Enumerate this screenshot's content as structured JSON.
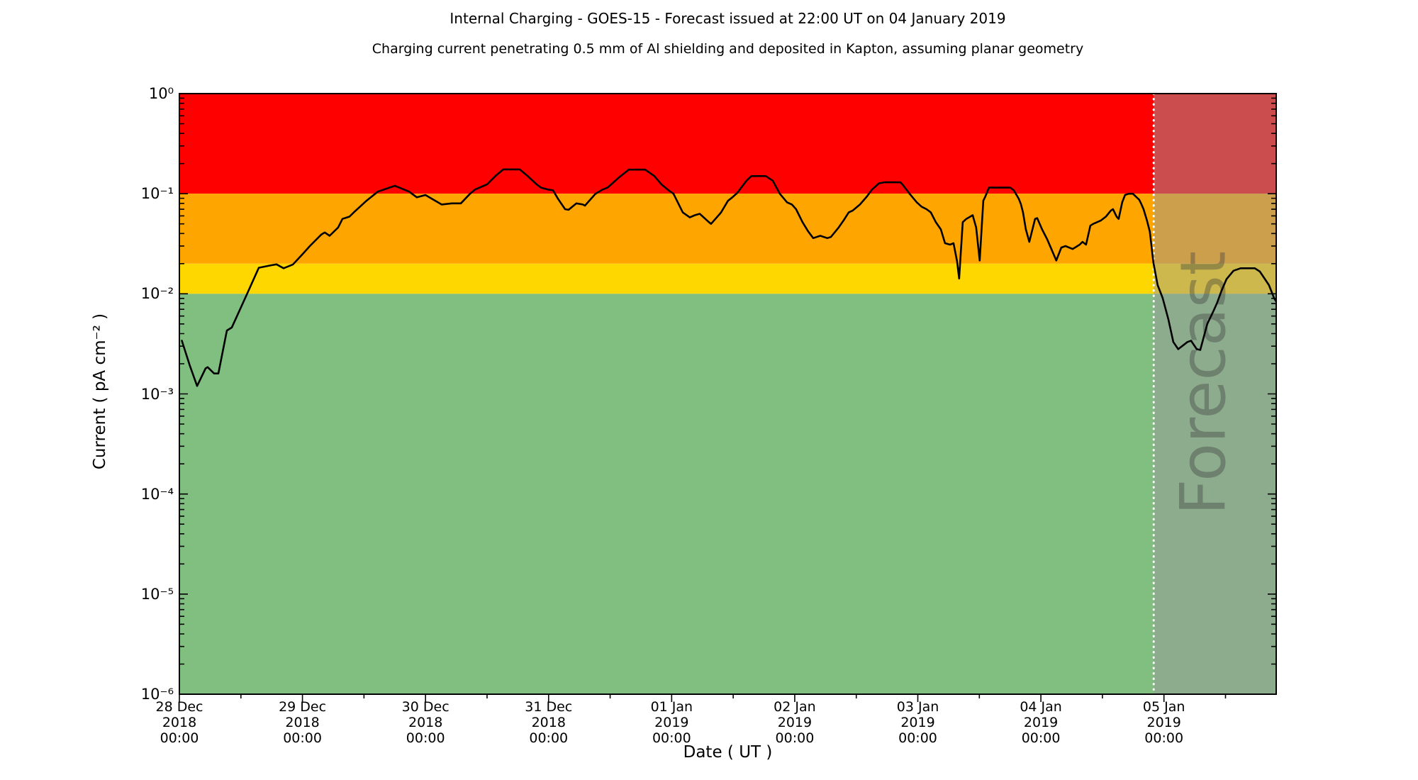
{
  "title": "Internal Charging - GOES-15 - Forecast issued at 22:00 UT on 04 January 2019",
  "subtitle": "Charging current penetrating 0.5 mm of Al shielding and deposited in Kapton, assuming planar geometry",
  "axes": {
    "x_label": "Date ( UT )",
    "y_label": "Current ( pA cm⁻² )",
    "y_ticks": [
      {
        "label": "10⁰",
        "exp": 0
      },
      {
        "label": "10⁻¹",
        "exp": -1
      },
      {
        "label": "10⁻²",
        "exp": -2
      },
      {
        "label": "10⁻³",
        "exp": -3
      },
      {
        "label": "10⁻⁴",
        "exp": -4
      },
      {
        "label": "10⁻⁵",
        "exp": -5
      },
      {
        "label": "10⁻⁶",
        "exp": -6
      }
    ],
    "x_ticks": [
      {
        "day": 0,
        "lines": [
          "28 Dec",
          "2018",
          "00:00"
        ]
      },
      {
        "day": 1,
        "lines": [
          "29 Dec",
          "2018",
          "00:00"
        ]
      },
      {
        "day": 2,
        "lines": [
          "30 Dec",
          "2018",
          "00:00"
        ]
      },
      {
        "day": 3,
        "lines": [
          "31 Dec",
          "2018",
          "00:00"
        ]
      },
      {
        "day": 4,
        "lines": [
          "01 Jan",
          "2019",
          "00:00"
        ]
      },
      {
        "day": 5,
        "lines": [
          "02 Jan",
          "2019",
          "00:00"
        ]
      },
      {
        "day": 6,
        "lines": [
          "03 Jan",
          "2019",
          "00:00"
        ]
      },
      {
        "day": 7,
        "lines": [
          "04 Jan",
          "2019",
          "00:00"
        ]
      },
      {
        "day": 8,
        "lines": [
          "05 Jan",
          "2019",
          "00:00"
        ]
      }
    ]
  },
  "forecast": {
    "label": "Forecast",
    "start_day": 7.9167,
    "divider_color": "#FFFFFF",
    "overlay_color": "rgba(153,153,153,0.5)"
  },
  "colors": {
    "line": "#000000",
    "spine": "#000000",
    "background": "#FFFFFF"
  },
  "chart_data": {
    "type": "line",
    "title": "Internal Charging - GOES-15 - Forecast issued at 22:00 UT on 04 January 2019",
    "xlabel": "Date ( UT )",
    "ylabel": "Current ( pA cm-2 )",
    "y_scale": "log",
    "ylim": [
      1e-06,
      1
    ],
    "x_range_days": [
      0,
      8.912
    ],
    "x_epoch": "28 Dec 2018 00:00 UT",
    "grid": false,
    "legend": "none",
    "bands": [
      {
        "name": "red-alert",
        "from": 0.1,
        "to": 1.0,
        "color": "#FF0000"
      },
      {
        "name": "orange-alert",
        "from": 0.02,
        "to": 0.1,
        "color": "#FFA500"
      },
      {
        "name": "yellow-alert",
        "from": 0.01,
        "to": 0.02,
        "color": "#FFD700"
      },
      {
        "name": "green-quiet",
        "from": 1e-06,
        "to": 0.01,
        "color": "#80BF80"
      }
    ],
    "series": [
      {
        "name": "charging-current",
        "color": "#000000",
        "points_day_value": [
          [
            0.02,
            0.0034
          ],
          [
            0.086,
            0.0019
          ],
          [
            0.144,
            0.0012
          ],
          [
            0.213,
            0.0018
          ],
          [
            0.23,
            0.00185
          ],
          [
            0.282,
            0.0016
          ],
          [
            0.317,
            0.0016
          ],
          [
            0.386,
            0.0043
          ],
          [
            0.426,
            0.0046
          ],
          [
            0.542,
            0.0095
          ],
          [
            0.645,
            0.0182
          ],
          [
            0.749,
            0.0193
          ],
          [
            0.789,
            0.0197
          ],
          [
            0.847,
            0.018
          ],
          [
            0.922,
            0.0196
          ],
          [
            1.002,
            0.025
          ],
          [
            1.06,
            0.03
          ],
          [
            1.152,
            0.039
          ],
          [
            1.181,
            0.041
          ],
          [
            1.221,
            0.038
          ],
          [
            1.29,
            0.046
          ],
          [
            1.325,
            0.056
          ],
          [
            1.382,
            0.059
          ],
          [
            1.423,
            0.066
          ],
          [
            1.52,
            0.085
          ],
          [
            1.613,
            0.105
          ],
          [
            1.751,
            0.12
          ],
          [
            1.866,
            0.105
          ],
          [
            1.93,
            0.092
          ],
          [
            1.999,
            0.097
          ],
          [
            2.131,
            0.078
          ],
          [
            2.212,
            0.08
          ],
          [
            2.287,
            0.08
          ],
          [
            2.362,
            0.1
          ],
          [
            2.402,
            0.11
          ],
          [
            2.5,
            0.124
          ],
          [
            2.575,
            0.153
          ],
          [
            2.632,
            0.175
          ],
          [
            2.765,
            0.175
          ],
          [
            2.822,
            0.153
          ],
          [
            2.903,
            0.124
          ],
          [
            2.938,
            0.115
          ],
          [
            2.995,
            0.11
          ],
          [
            3.036,
            0.108
          ],
          [
            3.076,
            0.089
          ],
          [
            3.134,
            0.07
          ],
          [
            3.162,
            0.069
          ],
          [
            3.226,
            0.08
          ],
          [
            3.278,
            0.078
          ],
          [
            3.295,
            0.076
          ],
          [
            3.381,
            0.1
          ],
          [
            3.439,
            0.11
          ],
          [
            3.479,
            0.115
          ],
          [
            3.571,
            0.145
          ],
          [
            3.652,
            0.174
          ],
          [
            3.784,
            0.174
          ],
          [
            3.859,
            0.15
          ],
          [
            3.917,
            0.124
          ],
          [
            3.975,
            0.108
          ],
          [
            4.015,
            0.1
          ],
          [
            4.09,
            0.065
          ],
          [
            4.147,
            0.058
          ],
          [
            4.188,
            0.061
          ],
          [
            4.228,
            0.063
          ],
          [
            4.303,
            0.052
          ],
          [
            4.32,
            0.05
          ],
          [
            4.401,
            0.065
          ],
          [
            4.458,
            0.085
          ],
          [
            4.493,
            0.092
          ],
          [
            4.533,
            0.102
          ],
          [
            4.608,
            0.135
          ],
          [
            4.648,
            0.15
          ],
          [
            4.764,
            0.15
          ],
          [
            4.821,
            0.135
          ],
          [
            4.879,
            0.1
          ],
          [
            4.937,
            0.082
          ],
          [
            4.977,
            0.078
          ],
          [
            5.011,
            0.07
          ],
          [
            5.063,
            0.052
          ],
          [
            5.109,
            0.042
          ],
          [
            5.15,
            0.036
          ],
          [
            5.207,
            0.038
          ],
          [
            5.265,
            0.036
          ],
          [
            5.294,
            0.037
          ],
          [
            5.357,
            0.046
          ],
          [
            5.397,
            0.054
          ],
          [
            5.438,
            0.065
          ],
          [
            5.472,
            0.068
          ],
          [
            5.53,
            0.078
          ],
          [
            5.587,
            0.094
          ],
          [
            5.628,
            0.11
          ],
          [
            5.685,
            0.127
          ],
          [
            5.726,
            0.13
          ],
          [
            5.858,
            0.13
          ],
          [
            5.875,
            0.124
          ],
          [
            5.933,
            0.1
          ],
          [
            5.991,
            0.082
          ],
          [
            6.031,
            0.074
          ],
          [
            6.071,
            0.07
          ],
          [
            6.106,
            0.065
          ],
          [
            6.146,
            0.052
          ],
          [
            6.187,
            0.044
          ],
          [
            6.221,
            0.032
          ],
          [
            6.262,
            0.031
          ],
          [
            6.29,
            0.032
          ],
          [
            6.319,
            0.021
          ],
          [
            6.336,
            0.0142
          ],
          [
            6.365,
            0.052
          ],
          [
            6.394,
            0.056
          ],
          [
            6.446,
            0.061
          ],
          [
            6.474,
            0.046
          ],
          [
            6.503,
            0.0215
          ],
          [
            6.532,
            0.085
          ],
          [
            6.549,
            0.094
          ],
          [
            6.578,
            0.115
          ],
          [
            6.751,
            0.115
          ],
          [
            6.78,
            0.108
          ],
          [
            6.82,
            0.089
          ],
          [
            6.837,
            0.079
          ],
          [
            6.855,
            0.065
          ],
          [
            6.878,
            0.044
          ],
          [
            6.906,
            0.033
          ],
          [
            6.953,
            0.056
          ],
          [
            6.97,
            0.057
          ],
          [
            7.01,
            0.044
          ],
          [
            7.051,
            0.035
          ],
          [
            7.085,
            0.028
          ],
          [
            7.125,
            0.0215
          ],
          [
            7.166,
            0.029
          ],
          [
            7.2,
            0.03
          ],
          [
            7.258,
            0.028
          ],
          [
            7.315,
            0.031
          ],
          [
            7.338,
            0.033
          ],
          [
            7.367,
            0.031
          ],
          [
            7.402,
            0.048
          ],
          [
            7.425,
            0.05
          ],
          [
            7.488,
            0.054
          ],
          [
            7.528,
            0.059
          ],
          [
            7.569,
            0.068
          ],
          [
            7.586,
            0.07
          ],
          [
            7.615,
            0.059
          ],
          [
            7.632,
            0.056
          ],
          [
            7.661,
            0.082
          ],
          [
            7.684,
            0.097
          ],
          [
            7.713,
            0.1
          ],
          [
            7.747,
            0.1
          ],
          [
            7.799,
            0.087
          ],
          [
            7.816,
            0.079
          ],
          [
            7.834,
            0.07
          ],
          [
            7.862,
            0.054
          ],
          [
            7.885,
            0.042
          ],
          [
            7.914,
            0.0205
          ],
          [
            7.949,
            0.0122
          ],
          [
            7.989,
            0.0091
          ],
          [
            8.035,
            0.0056
          ],
          [
            8.076,
            0.0033
          ],
          [
            8.116,
            0.0028
          ],
          [
            8.191,
            0.0033
          ],
          [
            8.22,
            0.0034
          ],
          [
            8.266,
            0.0028
          ],
          [
            8.295,
            0.00275
          ],
          [
            8.352,
            0.005
          ],
          [
            8.404,
            0.0068
          ],
          [
            8.433,
            0.0082
          ],
          [
            8.467,
            0.0107
          ],
          [
            8.508,
            0.014
          ],
          [
            8.565,
            0.017
          ],
          [
            8.623,
            0.018
          ],
          [
            8.738,
            0.018
          ],
          [
            8.779,
            0.0167
          ],
          [
            8.813,
            0.0145
          ],
          [
            8.853,
            0.0122
          ],
          [
            8.894,
            0.0091
          ],
          [
            8.911,
            0.0084
          ]
        ]
      }
    ],
    "annotations": [
      {
        "text": "Forecast",
        "region": "forecast-overlay",
        "rotation_deg": -90
      }
    ]
  }
}
